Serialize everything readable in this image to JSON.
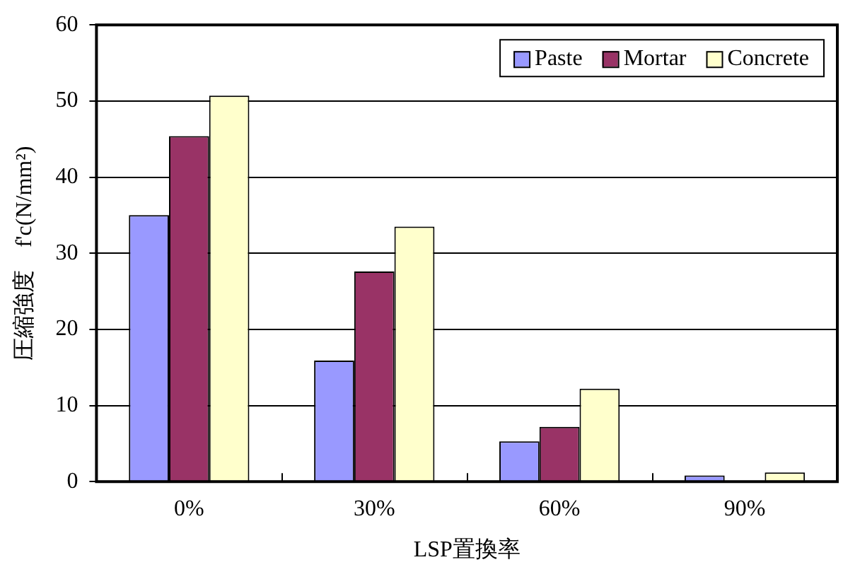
{
  "chart_data": {
    "type": "bar",
    "xlabel": "LSP置換率",
    "ylabel": "圧縮強度　f'c(N/mm²)",
    "categories": [
      "0%",
      "30%",
      "60%",
      "90%"
    ],
    "series": [
      {
        "name": "Paste",
        "color": "#9999ff",
        "values": [
          35,
          15.9,
          5.3,
          0.8
        ]
      },
      {
        "name": "Mortar",
        "color": "#993366",
        "values": [
          45.4,
          27.6,
          7.2,
          0
        ]
      },
      {
        "name": "Concrete",
        "color": "#ffffcc",
        "values": [
          50.7,
          33.5,
          12.2,
          1.2
        ]
      }
    ],
    "ylim": [
      0,
      60
    ],
    "yticks": [
      0,
      10,
      20,
      30,
      40,
      50,
      60
    ],
    "grid": "y",
    "legend": "top right"
  }
}
